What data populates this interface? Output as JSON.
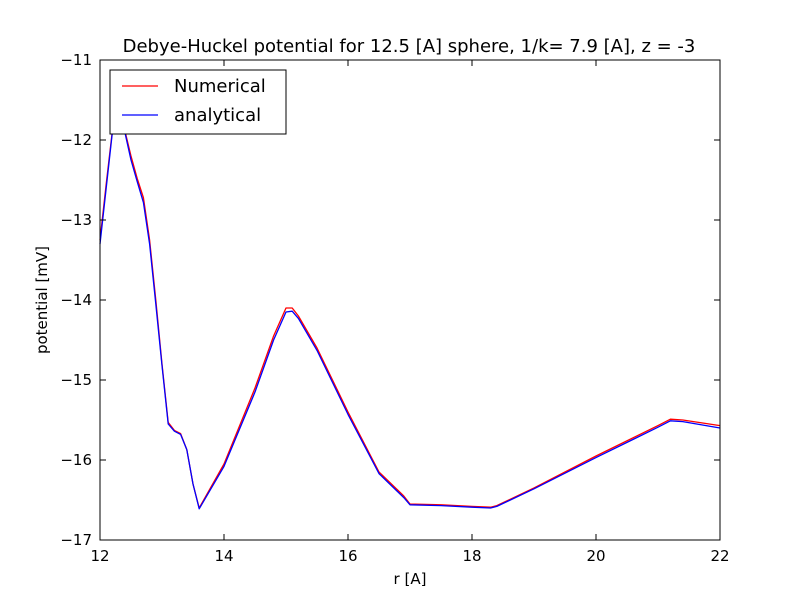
{
  "chart_data": {
    "type": "line",
    "title": "Debye-Huckel potential for 12.5 [A] sphere, 1/k=  7.9 [A], z = -3",
    "xlabel": "r [A]",
    "ylabel": "potential [mV]",
    "xlim": [
      12,
      22
    ],
    "ylim": [
      -17,
      -11
    ],
    "xticks": [
      12,
      14,
      16,
      18,
      20,
      22
    ],
    "yticks": [
      -11,
      -12,
      -13,
      -14,
      -15,
      -16,
      -17
    ],
    "xtick_labels": [
      "12",
      "14",
      "16",
      "18",
      "20",
      "22"
    ],
    "ytick_labels": [
      "−11",
      "−12",
      "−13",
      "−14",
      "−15",
      "−16",
      "−17"
    ],
    "grid": false,
    "legend_position": "top-left",
    "series": [
      {
        "name": "Numerical",
        "color": "#ff0000",
        "x": [
          12.0,
          12.1,
          12.2,
          12.3,
          12.4,
          12.5,
          12.6,
          12.7,
          12.8,
          12.9,
          13.0,
          13.1,
          13.2,
          13.3,
          13.4,
          13.5,
          13.6,
          14.0,
          14.5,
          14.8,
          15.0,
          15.1,
          15.2,
          15.5,
          16.0,
          16.5,
          16.9,
          17.0,
          17.5,
          18.0,
          18.3,
          18.4,
          19.0,
          20.0,
          21.0,
          21.2,
          21.4,
          22.0
        ],
        "y": [
          -13.25,
          -12.55,
          -11.88,
          -11.88,
          -11.88,
          -12.2,
          -12.48,
          -12.72,
          -13.25,
          -14.0,
          -14.8,
          -15.53,
          -15.63,
          -15.67,
          -15.87,
          -16.3,
          -16.6,
          -16.05,
          -15.1,
          -14.45,
          -14.1,
          -14.1,
          -14.2,
          -14.6,
          -15.4,
          -16.15,
          -16.45,
          -16.55,
          -16.56,
          -16.58,
          -16.59,
          -16.57,
          -16.35,
          -15.95,
          -15.57,
          -15.49,
          -15.5,
          -15.57
        ]
      },
      {
        "name": "analytical",
        "color": "#0000ff",
        "x": [
          12.0,
          12.1,
          12.2,
          12.3,
          12.4,
          12.5,
          12.6,
          12.7,
          12.8,
          12.9,
          13.0,
          13.1,
          13.2,
          13.3,
          13.4,
          13.5,
          13.6,
          14.0,
          14.5,
          14.8,
          15.0,
          15.1,
          15.2,
          15.5,
          16.0,
          16.5,
          16.9,
          17.0,
          17.5,
          18.0,
          18.3,
          18.4,
          19.0,
          20.0,
          21.0,
          21.2,
          21.4,
          22.0
        ],
        "y": [
          -13.3,
          -12.6,
          -11.9,
          -11.9,
          -11.9,
          -12.25,
          -12.52,
          -12.78,
          -13.3,
          -14.05,
          -14.82,
          -15.55,
          -15.64,
          -15.68,
          -15.87,
          -16.3,
          -16.61,
          -16.08,
          -15.15,
          -14.5,
          -14.15,
          -14.14,
          -14.23,
          -14.63,
          -15.43,
          -16.17,
          -16.47,
          -16.56,
          -16.57,
          -16.59,
          -16.6,
          -16.58,
          -16.36,
          -15.97,
          -15.59,
          -15.51,
          -15.52,
          -15.6
        ]
      }
    ]
  }
}
